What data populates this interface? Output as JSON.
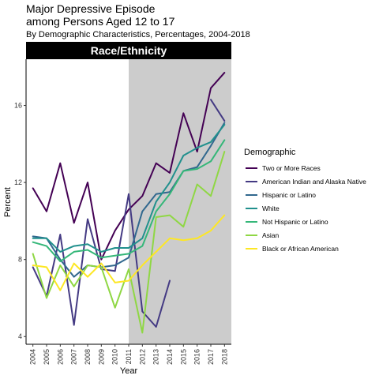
{
  "title_line1": "Major Depressive Episode",
  "title_line2": "among Persons Aged 12 to 17",
  "subtitle": "By Demographic Characteristics, Percentages, 2004-2018",
  "chart_data": {
    "type": "line",
    "facet": "Race/Ethnicity",
    "xlabel": "Year",
    "ylabel": "Percent",
    "x": [
      2004,
      2005,
      2006,
      2007,
      2008,
      2009,
      2010,
      2011,
      2012,
      2013,
      2014,
      2015,
      2016,
      2017,
      2018
    ],
    "xlim": [
      2003.5,
      2018.5
    ],
    "ylim": [
      3.6,
      18.4
    ],
    "yticks": [
      4,
      8,
      12,
      16
    ],
    "shaded_region": {
      "from": 2011,
      "to": 2018.5,
      "color": "#cccccc"
    },
    "legend_title": "Demographic",
    "legend_position": "right",
    "series": [
      {
        "name": "Two or More Races",
        "color": "#440154",
        "values": [
          11.7,
          10.5,
          13.0,
          9.9,
          12.0,
          8.0,
          9.5,
          10.6,
          11.3,
          13.0,
          12.5,
          15.6,
          13.6,
          16.9,
          17.7
        ]
      },
      {
        "name": "American Indian and Alaska Native",
        "color": "#443A83",
        "values": [
          7.6,
          6.1,
          9.3,
          4.6,
          10.1,
          7.5,
          7.4,
          11.4,
          5.3,
          4.5,
          6.9,
          null,
          null,
          16.3,
          15.2
        ]
      },
      {
        "name": "Hispanic or Latino",
        "color": "#31688E",
        "values": [
          9.2,
          9.1,
          8.0,
          7.1,
          7.7,
          7.6,
          7.7,
          8.1,
          10.5,
          11.4,
          11.5,
          12.6,
          12.8,
          13.9,
          15.1
        ]
      },
      {
        "name": "White",
        "color": "#21908D",
        "values": [
          9.1,
          9.1,
          8.4,
          8.7,
          8.8,
          8.4,
          8.6,
          8.6,
          9.1,
          11.0,
          12.0,
          13.4,
          13.8,
          14.1,
          15.0
        ]
      },
      {
        "name": "Not Hispanic or Latino",
        "color": "#35B779",
        "values": [
          8.9,
          8.7,
          7.9,
          8.4,
          8.5,
          8.1,
          8.2,
          8.3,
          8.7,
          10.5,
          11.4,
          12.6,
          12.7,
          13.1,
          14.2
        ]
      },
      {
        "name": "Asian",
        "color": "#8FD744",
        "values": [
          8.3,
          6.0,
          7.7,
          6.6,
          7.7,
          7.6,
          5.5,
          7.5,
          4.2,
          10.2,
          10.3,
          9.7,
          11.9,
          11.3,
          13.6
        ]
      },
      {
        "name": "Black or African American",
        "color": "#FDE725",
        "values": [
          7.7,
          7.6,
          6.4,
          7.8,
          7.1,
          7.8,
          6.8,
          6.9,
          7.7,
          8.4,
          9.1,
          9.0,
          9.1,
          9.5,
          10.3
        ]
      }
    ]
  }
}
